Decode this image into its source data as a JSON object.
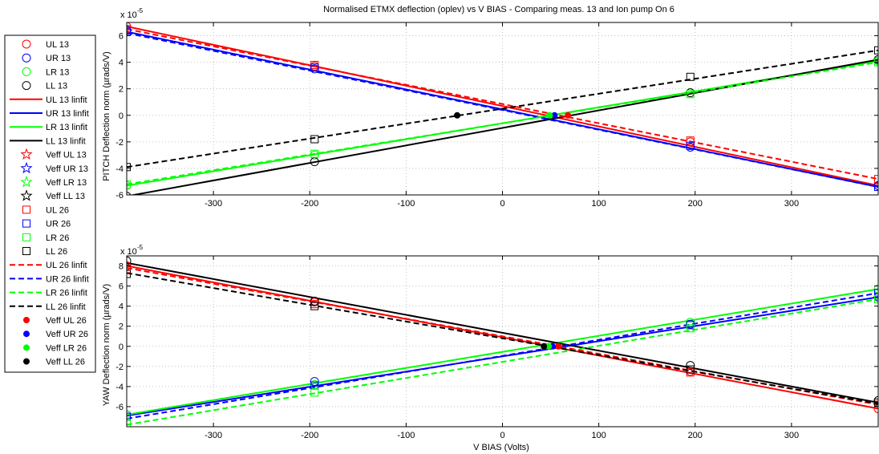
{
  "chart_data": [
    {
      "type": "line",
      "title": "Normalised ETMX deflection (oplev) vs V BIAS - Comparing meas. 13 and Ion pump On 6",
      "ylabel": "PITCH Deflection norm (µrads/V)",
      "xlabel": "",
      "y_exponent": "x 10",
      "y_exponent_power": "-5",
      "xlim": [
        -390,
        390
      ],
      "ylim": [
        -6,
        7
      ],
      "xticks": [
        -300,
        -200,
        -100,
        0,
        100,
        200,
        300
      ],
      "yticks": [
        -6,
        -4,
        -2,
        0,
        2,
        4,
        6
      ],
      "grid": true,
      "series": [
        {
          "name": "UL 13",
          "kind": "circle",
          "color": "#ff0000",
          "points": [
            [
              -390,
              6.7
            ],
            [
              -195,
              3.7
            ],
            [
              195,
              -2.0
            ],
            [
              390,
              -5.3
            ]
          ]
        },
        {
          "name": "UR 13",
          "kind": "circle",
          "color": "#0000ff",
          "points": [
            [
              -390,
              6.4
            ],
            [
              -195,
              3.5
            ],
            [
              195,
              -2.4
            ],
            [
              390,
              -5.3
            ]
          ]
        },
        {
          "name": "LR 13",
          "kind": "circle",
          "color": "#00ff00",
          "points": [
            [
              -390,
              -5.3
            ],
            [
              -195,
              -3.0
            ],
            [
              195,
              1.7
            ],
            [
              390,
              4.1
            ]
          ]
        },
        {
          "name": "LL 13",
          "kind": "circle",
          "color": "#000000",
          "points": [
            [
              -390,
              -6.1
            ],
            [
              -195,
              -3.5
            ],
            [
              195,
              1.7
            ],
            [
              390,
              4.2
            ]
          ]
        },
        {
          "name": "UL 13 linfit",
          "kind": "solid",
          "color": "#ff0000",
          "points": [
            [
              -390,
              6.7
            ],
            [
              390,
              -5.3
            ]
          ]
        },
        {
          "name": "UR 13 linfit",
          "kind": "solid",
          "color": "#0000ff",
          "points": [
            [
              -390,
              6.3
            ],
            [
              390,
              -5.4
            ]
          ]
        },
        {
          "name": "LR 13 linfit",
          "kind": "solid",
          "color": "#00ff00",
          "points": [
            [
              -390,
              -5.3
            ],
            [
              390,
              4.1
            ]
          ]
        },
        {
          "name": "LL 13 linfit",
          "kind": "solid",
          "color": "#000000",
          "points": [
            [
              -390,
              -6.1
            ],
            [
              390,
              4.2
            ]
          ]
        },
        {
          "name": "Veff UL 13",
          "kind": "star",
          "color": "#ff0000",
          "points": []
        },
        {
          "name": "Veff UR 13",
          "kind": "star",
          "color": "#0000ff",
          "points": []
        },
        {
          "name": "Veff LR 13",
          "kind": "star",
          "color": "#00ff00",
          "points": []
        },
        {
          "name": "Veff LL 13",
          "kind": "star",
          "color": "#000000",
          "points": []
        },
        {
          "name": "UL 26",
          "kind": "square",
          "color": "#ff0000",
          "points": [
            [
              -390,
              6.5
            ],
            [
              -195,
              3.8
            ],
            [
              195,
              -1.9
            ],
            [
              390,
              -4.8
            ]
          ]
        },
        {
          "name": "UR 26",
          "kind": "square",
          "color": "#0000ff",
          "points": [
            [
              -390,
              6.3
            ],
            [
              -195,
              3.6
            ],
            [
              195,
              -2.3
            ],
            [
              390,
              -5.4
            ]
          ]
        },
        {
          "name": "LR 26",
          "kind": "square",
          "color": "#00ff00",
          "points": [
            [
              -390,
              -5.2
            ],
            [
              -195,
              -2.9
            ],
            [
              195,
              1.6
            ],
            [
              390,
              4.0
            ]
          ]
        },
        {
          "name": "LL 26",
          "kind": "square",
          "color": "#000000",
          "points": [
            [
              -390,
              -3.9
            ],
            [
              -195,
              -1.8
            ],
            [
              195,
              2.9
            ],
            [
              390,
              4.9
            ]
          ]
        },
        {
          "name": "UL 26 linfit",
          "kind": "dashed",
          "color": "#ff0000",
          "points": [
            [
              -390,
              6.5
            ],
            [
              390,
              -4.8
            ]
          ]
        },
        {
          "name": "UR 26 linfit",
          "kind": "dashed",
          "color": "#0000ff",
          "points": [
            [
              -390,
              6.2
            ],
            [
              390,
              -5.4
            ]
          ]
        },
        {
          "name": "LR 26 linfit",
          "kind": "dashed",
          "color": "#00ff00",
          "points": [
            [
              -390,
              -5.2
            ],
            [
              390,
              4.0
            ]
          ]
        },
        {
          "name": "LL 26 linfit",
          "kind": "dashed",
          "color": "#000000",
          "points": [
            [
              -390,
              -3.9
            ],
            [
              390,
              4.9
            ]
          ]
        },
        {
          "name": "Veff UL 26",
          "kind": "dot",
          "color": "#ff0000",
          "points": [
            [
              68,
              0
            ]
          ]
        },
        {
          "name": "Veff UR 26",
          "kind": "dot",
          "color": "#0000ff",
          "points": [
            [
              54,
              0
            ]
          ]
        },
        {
          "name": "Veff LR 26",
          "kind": "dot",
          "color": "#00ff00",
          "points": [
            [
              49,
              0
            ]
          ]
        },
        {
          "name": "Veff LL 26",
          "kind": "dot",
          "color": "#000000",
          "points": [
            [
              -47,
              0
            ]
          ]
        }
      ]
    },
    {
      "type": "line",
      "title": "",
      "ylabel": "YAW Deflection norm (µrads/V)",
      "xlabel": "V BIAS (Volts)",
      "y_exponent": "x 10",
      "y_exponent_power": "-5",
      "xlim": [
        -390,
        390
      ],
      "ylim": [
        -8,
        9
      ],
      "xticks": [
        -300,
        -200,
        -100,
        0,
        100,
        200,
        300
      ],
      "yticks": [
        -6,
        -4,
        -2,
        0,
        2,
        4,
        6,
        8
      ],
      "grid": true,
      "series": [
        {
          "name": "UL 13",
          "kind": "circle",
          "color": "#ff0000",
          "points": [
            [
              -390,
              8.0
            ],
            [
              -195,
              4.4
            ],
            [
              195,
              -2.5
            ],
            [
              390,
              -6.2
            ]
          ]
        },
        {
          "name": "UR 13",
          "kind": "circle",
          "color": "#0000ff",
          "points": [
            [
              -390,
              -6.8
            ],
            [
              -195,
              -3.5
            ],
            [
              195,
              2.2
            ],
            [
              390,
              4.9
            ]
          ]
        },
        {
          "name": "LR 13",
          "kind": "circle",
          "color": "#00ff00",
          "points": [
            [
              -390,
              -6.8
            ],
            [
              -195,
              -3.8
            ],
            [
              195,
              2.4
            ],
            [
              390,
              5.7
            ]
          ]
        },
        {
          "name": "LL 13",
          "kind": "circle",
          "color": "#000000",
          "points": [
            [
              -390,
              8.5
            ],
            [
              -195,
              4.5
            ],
            [
              195,
              -1.9
            ],
            [
              390,
              -5.4
            ]
          ]
        },
        {
          "name": "UL 13 linfit",
          "kind": "solid",
          "color": "#ff0000",
          "points": [
            [
              -390,
              8.0
            ],
            [
              390,
              -6.2
            ]
          ]
        },
        {
          "name": "UR 13 linfit",
          "kind": "solid",
          "color": "#0000ff",
          "points": [
            [
              -390,
              -6.9
            ],
            [
              390,
              4.9
            ]
          ]
        },
        {
          "name": "LR 13 linfit",
          "kind": "solid",
          "color": "#00ff00",
          "points": [
            [
              -390,
              -6.8
            ],
            [
              390,
              5.7
            ]
          ]
        },
        {
          "name": "LL 13 linfit",
          "kind": "solid",
          "color": "#000000",
          "points": [
            [
              -390,
              8.3
            ],
            [
              390,
              -5.6
            ]
          ]
        },
        {
          "name": "Veff UL 13",
          "kind": "star",
          "color": "#ff0000",
          "points": []
        },
        {
          "name": "Veff UR 13",
          "kind": "star",
          "color": "#0000ff",
          "points": []
        },
        {
          "name": "Veff LR 13",
          "kind": "star",
          "color": "#00ff00",
          "points": []
        },
        {
          "name": "Veff LL 13",
          "kind": "star",
          "color": "#000000",
          "points": []
        },
        {
          "name": "UL 26",
          "kind": "square",
          "color": "#ff0000",
          "points": [
            [
              -390,
              7.7
            ],
            [
              -195,
              4.2
            ],
            [
              195,
              -2.6
            ],
            [
              390,
              -5.8
            ]
          ]
        },
        {
          "name": "UR 26",
          "kind": "square",
          "color": "#0000ff",
          "points": [
            [
              -390,
              -7.0
            ],
            [
              -195,
              -3.9
            ],
            [
              195,
              2.1
            ],
            [
              390,
              5.3
            ]
          ]
        },
        {
          "name": "LR 26",
          "kind": "square",
          "color": "#00ff00",
          "points": [
            [
              -390,
              -7.7
            ],
            [
              -195,
              -4.6
            ],
            [
              195,
              1.8
            ],
            [
              390,
              4.7
            ]
          ]
        },
        {
          "name": "LL 26",
          "kind": "square",
          "color": "#000000",
          "points": [
            [
              -390,
              7.2
            ],
            [
              -195,
              4.0
            ],
            [
              195,
              -2.3
            ],
            [
              390,
              -5.6
            ]
          ]
        },
        {
          "name": "UL 26 linfit",
          "kind": "dashed",
          "color": "#ff0000",
          "points": [
            [
              -390,
              7.8
            ],
            [
              390,
              -5.8
            ]
          ]
        },
        {
          "name": "UR 26 linfit",
          "kind": "dashed",
          "color": "#0000ff",
          "points": [
            [
              -390,
              -7.2
            ],
            [
              390,
              5.3
            ]
          ]
        },
        {
          "name": "LR 26 linfit",
          "kind": "dashed",
          "color": "#00ff00",
          "points": [
            [
              -390,
              -7.8
            ],
            [
              390,
              4.7
            ]
          ]
        },
        {
          "name": "LL 26 linfit",
          "kind": "dashed",
          "color": "#000000",
          "points": [
            [
              -390,
              7.3
            ],
            [
              390,
              -5.7
            ]
          ]
        },
        {
          "name": "Veff UL 26",
          "kind": "dot",
          "color": "#ff0000",
          "points": [
            [
              58,
              0
            ]
          ]
        },
        {
          "name": "Veff UR 26",
          "kind": "dot",
          "color": "#0000ff",
          "points": [
            [
              52,
              0
            ]
          ]
        },
        {
          "name": "Veff LR 26",
          "kind": "dot",
          "color": "#00ff00",
          "points": [
            [
              48,
              0
            ]
          ]
        },
        {
          "name": "Veff LL 26",
          "kind": "dot",
          "color": "#000000",
          "points": [
            [
              43,
              0
            ]
          ]
        }
      ]
    }
  ],
  "legend": {
    "placement": "left",
    "entries": [
      {
        "label": "UL 13",
        "kind": "circle",
        "color": "#ff0000"
      },
      {
        "label": "UR 13",
        "kind": "circle",
        "color": "#0000ff"
      },
      {
        "label": "LR 13",
        "kind": "circle",
        "color": "#00ff00"
      },
      {
        "label": "LL 13",
        "kind": "circle",
        "color": "#000000"
      },
      {
        "label": "UL 13 linfit",
        "kind": "solid",
        "color": "#ff0000"
      },
      {
        "label": "UR 13 linfit",
        "kind": "solid",
        "color": "#0000ff"
      },
      {
        "label": "LR 13 linfit",
        "kind": "solid",
        "color": "#00ff00"
      },
      {
        "label": "LL 13 linfit",
        "kind": "solid",
        "color": "#000000"
      },
      {
        "label": "Veff UL 13",
        "kind": "star",
        "color": "#ff0000"
      },
      {
        "label": "Veff UR 13",
        "kind": "star",
        "color": "#0000ff"
      },
      {
        "label": "Veff LR 13",
        "kind": "star",
        "color": "#00ff00"
      },
      {
        "label": "Veff LL 13",
        "kind": "star",
        "color": "#000000"
      },
      {
        "label": "UL 26",
        "kind": "square",
        "color": "#ff0000"
      },
      {
        "label": "UR 26",
        "kind": "square",
        "color": "#0000ff"
      },
      {
        "label": "LR 26",
        "kind": "square",
        "color": "#00ff00"
      },
      {
        "label": "LL 26",
        "kind": "square",
        "color": "#000000"
      },
      {
        "label": "UL 26 linfit",
        "kind": "dashed",
        "color": "#ff0000"
      },
      {
        "label": "UR 26 linfit",
        "kind": "dashed",
        "color": "#0000ff"
      },
      {
        "label": "LR 26 linfit",
        "kind": "dashed",
        "color": "#00ff00"
      },
      {
        "label": "LL 26 linfit",
        "kind": "dashed",
        "color": "#000000"
      },
      {
        "label": "Veff UL 26",
        "kind": "dot",
        "color": "#ff0000"
      },
      {
        "label": "Veff UR 26",
        "kind": "dot",
        "color": "#0000ff"
      },
      {
        "label": "Veff LR 26",
        "kind": "dot",
        "color": "#00ff00"
      },
      {
        "label": "Veff LL 26",
        "kind": "dot",
        "color": "#000000"
      }
    ]
  }
}
